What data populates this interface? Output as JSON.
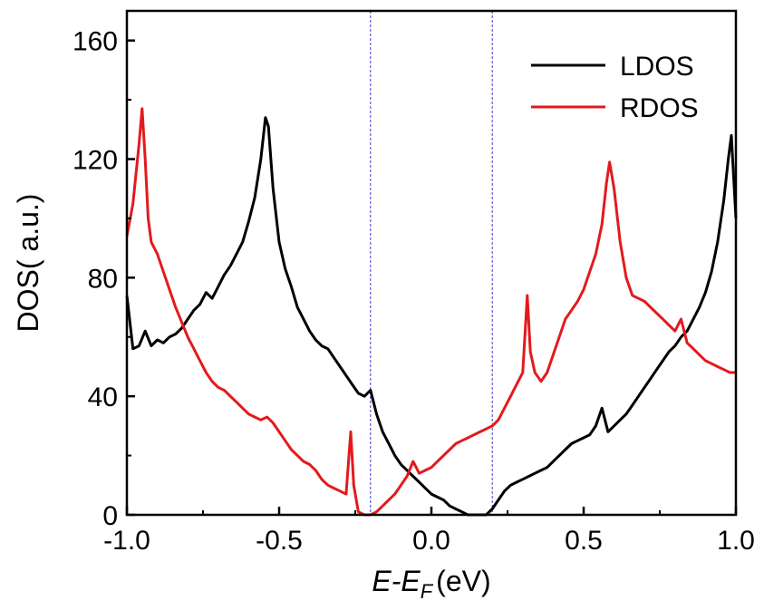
{
  "chart_data": {
    "type": "line",
    "xlabel": {
      "main": "E-E",
      "sub": "F",
      "unit": "(eV)"
    },
    "ylabel": "DOS( a.u.)",
    "xlim": [
      -1.0,
      1.0
    ],
    "ylim": [
      0,
      170
    ],
    "xticks": [
      -1.0,
      -0.5,
      0.0,
      0.5,
      1.0
    ],
    "xtick_labels": [
      "-1.0",
      "-0.5",
      "0.0",
      "0.5",
      "1.0"
    ],
    "yticks": [
      0,
      40,
      80,
      120,
      160
    ],
    "ytick_labels": [
      "0",
      "40",
      "80",
      "120",
      "160"
    ],
    "grid": false,
    "legend_position": "top-right",
    "reference_lines_x": [
      -0.2,
      0.2
    ],
    "reference_line_color": "#3b3bd6",
    "series": [
      {
        "name": "LDOS",
        "color": "#000000",
        "x": [
          -1.0,
          -0.98,
          -0.96,
          -0.94,
          -0.92,
          -0.9,
          -0.88,
          -0.86,
          -0.84,
          -0.82,
          -0.8,
          -0.78,
          -0.76,
          -0.74,
          -0.72,
          -0.7,
          -0.68,
          -0.66,
          -0.64,
          -0.62,
          -0.6,
          -0.58,
          -0.56,
          -0.545,
          -0.535,
          -0.52,
          -0.5,
          -0.48,
          -0.46,
          -0.44,
          -0.42,
          -0.4,
          -0.38,
          -0.36,
          -0.34,
          -0.32,
          -0.3,
          -0.28,
          -0.26,
          -0.24,
          -0.22,
          -0.2,
          -0.18,
          -0.16,
          -0.14,
          -0.12,
          -0.1,
          -0.08,
          -0.06,
          -0.04,
          -0.02,
          0.0,
          0.02,
          0.04,
          0.06,
          0.08,
          0.1,
          0.12,
          0.14,
          0.16,
          0.18,
          0.2,
          0.22,
          0.24,
          0.26,
          0.28,
          0.3,
          0.32,
          0.34,
          0.36,
          0.38,
          0.4,
          0.42,
          0.44,
          0.46,
          0.48,
          0.5,
          0.52,
          0.54,
          0.56,
          0.58,
          0.6,
          0.62,
          0.64,
          0.66,
          0.68,
          0.7,
          0.72,
          0.74,
          0.76,
          0.78,
          0.8,
          0.82,
          0.84,
          0.86,
          0.88,
          0.9,
          0.92,
          0.94,
          0.96,
          0.975,
          0.985,
          1.0
        ],
        "y": [
          74,
          56,
          57,
          62,
          57,
          59,
          58,
          60,
          61,
          63,
          66,
          69,
          71,
          75,
          73,
          77,
          81,
          84,
          88,
          92,
          99,
          107,
          120,
          134,
          131,
          110,
          92,
          83,
          77,
          70,
          66,
          62,
          59,
          57,
          56,
          53,
          50,
          47,
          44,
          41,
          40,
          42,
          34,
          28,
          24,
          20,
          17,
          15,
          13,
          11,
          9,
          7,
          6,
          5,
          3,
          2,
          1,
          0,
          0,
          0,
          0,
          2,
          5,
          8,
          10,
          11,
          12,
          13,
          14,
          15,
          16,
          18,
          20,
          22,
          24,
          25,
          26,
          27,
          30,
          36,
          28,
          30,
          32,
          34,
          37,
          40,
          43,
          46,
          49,
          52,
          55,
          57,
          60,
          62,
          66,
          70,
          75,
          82,
          92,
          106,
          120,
          128,
          100
        ]
      },
      {
        "name": "RDOS",
        "color": "#e31a1c",
        "x": [
          -1.0,
          -0.98,
          -0.96,
          -0.95,
          -0.94,
          -0.93,
          -0.92,
          -0.9,
          -0.88,
          -0.86,
          -0.84,
          -0.82,
          -0.8,
          -0.78,
          -0.76,
          -0.74,
          -0.72,
          -0.7,
          -0.68,
          -0.66,
          -0.64,
          -0.62,
          -0.6,
          -0.58,
          -0.56,
          -0.54,
          -0.52,
          -0.5,
          -0.48,
          -0.46,
          -0.44,
          -0.42,
          -0.4,
          -0.38,
          -0.36,
          -0.34,
          -0.32,
          -0.3,
          -0.28,
          -0.265,
          -0.255,
          -0.24,
          -0.22,
          -0.2,
          -0.18,
          -0.16,
          -0.14,
          -0.12,
          -0.1,
          -0.08,
          -0.06,
          -0.04,
          -0.02,
          0.0,
          0.02,
          0.04,
          0.06,
          0.08,
          0.1,
          0.12,
          0.14,
          0.16,
          0.18,
          0.2,
          0.22,
          0.24,
          0.26,
          0.28,
          0.3,
          0.315,
          0.325,
          0.34,
          0.36,
          0.38,
          0.4,
          0.42,
          0.44,
          0.46,
          0.48,
          0.5,
          0.52,
          0.54,
          0.56,
          0.575,
          0.585,
          0.6,
          0.62,
          0.64,
          0.66,
          0.68,
          0.7,
          0.72,
          0.74,
          0.76,
          0.78,
          0.8,
          0.82,
          0.84,
          0.86,
          0.88,
          0.9,
          0.92,
          0.94,
          0.96,
          0.98,
          1.0
        ],
        "y": [
          94,
          105,
          125,
          137,
          120,
          100,
          92,
          88,
          82,
          76,
          70,
          65,
          60,
          56,
          52,
          48,
          45,
          43,
          42,
          40,
          38,
          36,
          34,
          33,
          32,
          33,
          31,
          28,
          25,
          22,
          20,
          18,
          17,
          15,
          12,
          10,
          9,
          8,
          7,
          28,
          10,
          1,
          0,
          0,
          1,
          3,
          5,
          7,
          10,
          13,
          18,
          14,
          15,
          16,
          18,
          20,
          22,
          24,
          25,
          26,
          27,
          28,
          29,
          30,
          32,
          36,
          40,
          44,
          48,
          74,
          55,
          48,
          45,
          48,
          54,
          60,
          66,
          69,
          72,
          76,
          82,
          88,
          98,
          112,
          119,
          110,
          92,
          80,
          74,
          73,
          72,
          70,
          68,
          66,
          64,
          62,
          66,
          58,
          56,
          54,
          52,
          51,
          50,
          49,
          48,
          48
        ]
      }
    ]
  }
}
